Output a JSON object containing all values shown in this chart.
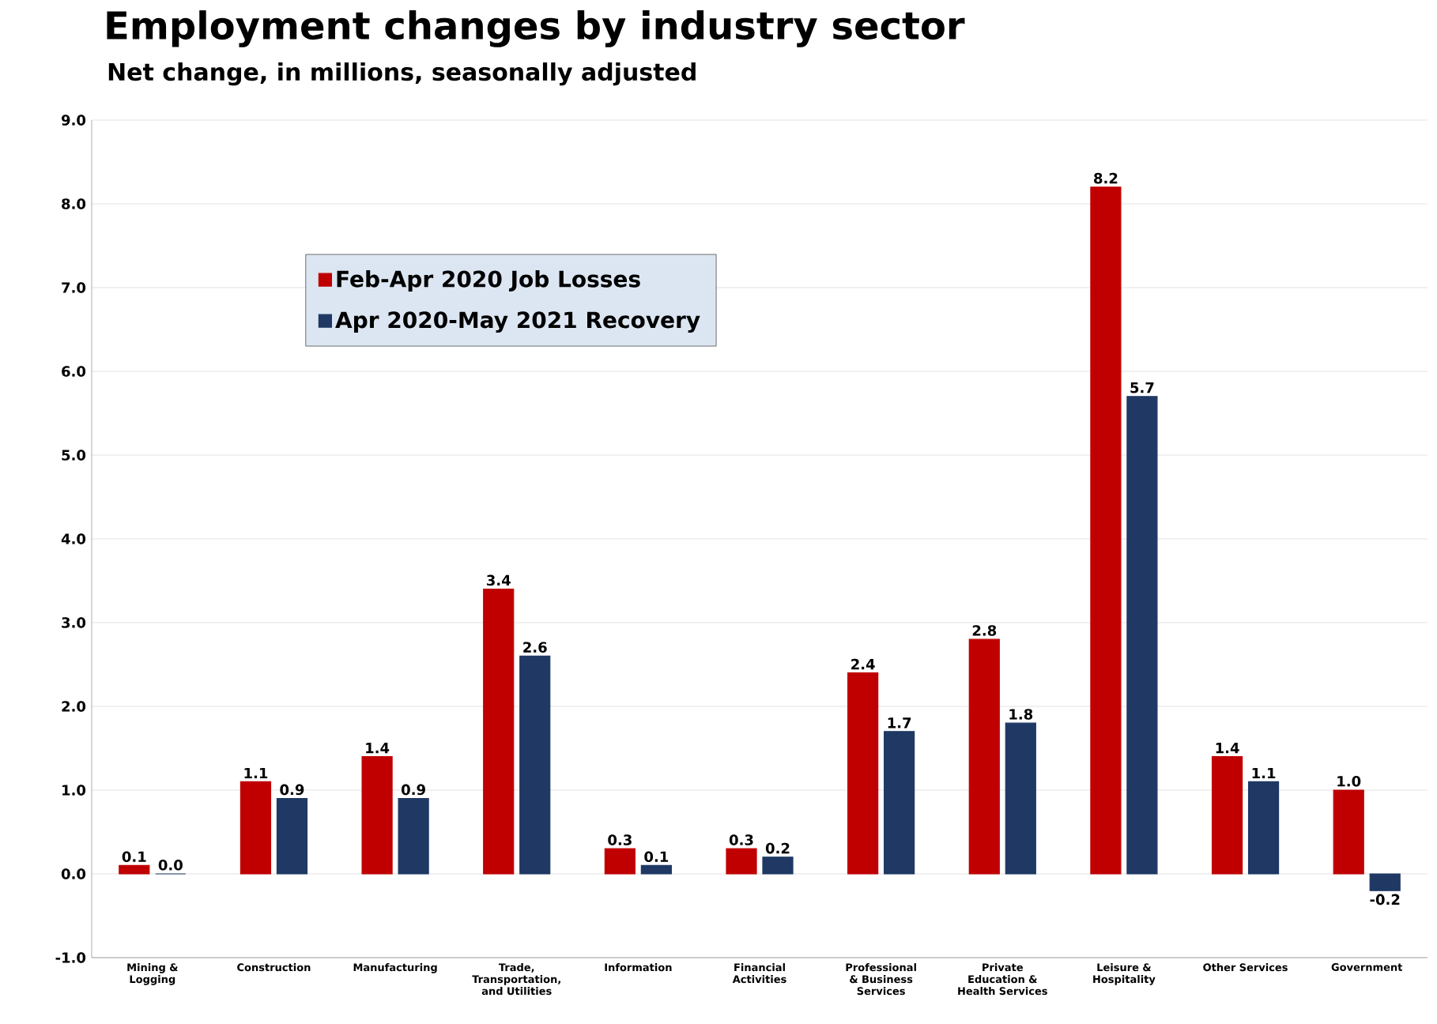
{
  "chart_data": {
    "type": "bar",
    "title": "Employment changes by industry sector",
    "subtitle": "Net change, in millions, seasonally adjusted",
    "categories": [
      "Mining & Logging",
      "Construction",
      "Manufacturing",
      "Trade, Transportation, and Utilities",
      "Information",
      "Financial Activities",
      "Professional & Business Services",
      "Private Education & Health Services",
      "Leisure & Hospitality",
      "Other Services",
      "Government"
    ],
    "series": [
      {
        "name": "Feb-Apr 2020 Job Losses",
        "color": "#c00000",
        "values": [
          0.1,
          1.1,
          1.4,
          3.4,
          0.3,
          0.3,
          2.4,
          2.8,
          8.2,
          1.4,
          1.0
        ],
        "value_labels": [
          "0.1",
          "1.1",
          "1.4",
          "3.4",
          "0.3",
          "0.3",
          "2.4",
          "2.8",
          "8.2",
          "1.4",
          "1.0"
        ]
      },
      {
        "name": "Apr 2020-May 2021 Recovery",
        "color": "#1f3864",
        "values": [
          0.0,
          0.9,
          0.9,
          2.6,
          0.1,
          0.2,
          1.7,
          1.8,
          5.7,
          1.1,
          -0.2
        ],
        "value_labels": [
          "0.0",
          "0.9",
          "0.9",
          "2.6",
          "0.1",
          "0.2",
          "1.7",
          "1.8",
          "5.7",
          "1.1",
          "-0.2"
        ]
      }
    ],
    "ylim": [
      -1,
      9
    ],
    "yticks": [
      {
        "value": -1,
        "label": "-1.0"
      },
      {
        "value": 0,
        "label": "0.0"
      },
      {
        "value": 1,
        "label": "1.0"
      },
      {
        "value": 2,
        "label": "2.0"
      },
      {
        "value": 3,
        "label": "3.0"
      },
      {
        "value": 4,
        "label": "4.0"
      },
      {
        "value": 5,
        "label": "5.0"
      },
      {
        "value": 6,
        "label": "6.0"
      },
      {
        "value": 7,
        "label": "7.0"
      },
      {
        "value": 8,
        "label": "8.0"
      },
      {
        "value": 9,
        "label": "9.0"
      }
    ],
    "grid": "y",
    "legend": "top left"
  }
}
